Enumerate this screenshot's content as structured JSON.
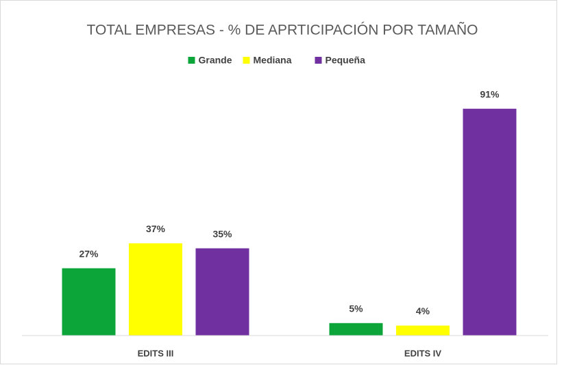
{
  "chart_data": {
    "type": "bar",
    "title": "TOTAL EMPRESAS - % DE APRTICIPACIÓN POR TAMAÑO",
    "categories": [
      "EDITS III",
      "EDITS IV"
    ],
    "series": [
      {
        "name": "Grande",
        "color": "#0ca53a",
        "values": [
          27,
          5
        ],
        "value_labels": [
          "27%",
          "5%"
        ]
      },
      {
        "name": "Mediana",
        "color": "#ffff00",
        "values": [
          37,
          4
        ],
        "value_labels": [
          "37%",
          "4%"
        ]
      },
      {
        "name": "Pequeña",
        "color": "#7030a0",
        "values": [
          35,
          91
        ],
        "value_labels": [
          "35%",
          "91%"
        ]
      }
    ],
    "ylim": [
      0,
      100
    ],
    "legend": "top"
  }
}
